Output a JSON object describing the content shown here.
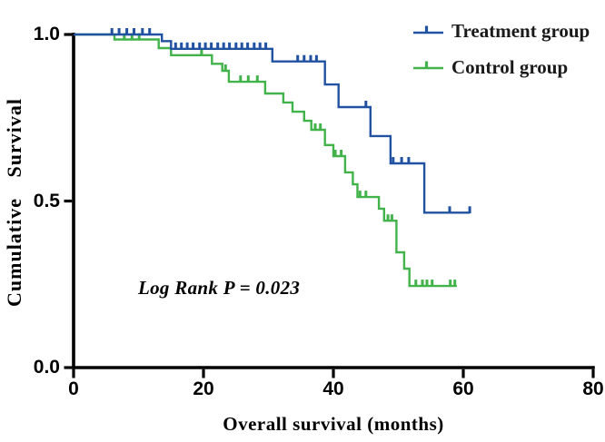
{
  "chart_data": {
    "type": "line",
    "variant": "kaplan_meier_step_curve",
    "title": "",
    "xlabel": "Overall survival (months)",
    "ylabel": "Cumulative Survival",
    "annotation": "Log Rank P = 0.023",
    "log_rank_p": 0.023,
    "xlim": [
      0,
      80
    ],
    "ylim": [
      0.0,
      1.0
    ],
    "x_ticks": [
      0,
      20,
      40,
      60,
      80
    ],
    "x_tick_labels": [
      "0",
      "20",
      "40",
      "60",
      "80"
    ],
    "y_ticks": [
      0.0,
      0.5,
      1.0
    ],
    "y_tick_labels": [
      "0.0",
      "0.5",
      "1.0"
    ],
    "grid": false,
    "legend_position": "top-right",
    "axis_color": "#000000",
    "background_color": "#ffffff",
    "series": [
      {
        "name": "Control group",
        "color": "#42B24A",
        "end_time": 59.0,
        "steps": [
          [
            0,
            1.0
          ],
          [
            6.3,
            0.985
          ],
          [
            13.1,
            0.959
          ],
          [
            15.0,
            0.938
          ],
          [
            21.3,
            0.912
          ],
          [
            22.9,
            0.891
          ],
          [
            23.9,
            0.858
          ],
          [
            29.5,
            0.823
          ],
          [
            32.3,
            0.796
          ],
          [
            33.7,
            0.768
          ],
          [
            35.5,
            0.741
          ],
          [
            36.6,
            0.714
          ],
          [
            38.7,
            0.668
          ],
          [
            40.0,
            0.635
          ],
          [
            41.8,
            0.586
          ],
          [
            43.0,
            0.55
          ],
          [
            43.7,
            0.512
          ],
          [
            47.0,
            0.477
          ],
          [
            47.8,
            0.441
          ],
          [
            49.7,
            0.346
          ],
          [
            50.9,
            0.297
          ],
          [
            51.7,
            0.245
          ]
        ],
        "censor_marks": [
          [
            7.8,
            0.985
          ],
          [
            9.0,
            0.985
          ],
          [
            10.1,
            0.985
          ],
          [
            19.7,
            0.938
          ],
          [
            23.4,
            0.891
          ],
          [
            25.7,
            0.858
          ],
          [
            26.9,
            0.858
          ],
          [
            28.3,
            0.858
          ],
          [
            37.2,
            0.714
          ],
          [
            38.0,
            0.714
          ],
          [
            40.3,
            0.635
          ],
          [
            41.2,
            0.635
          ],
          [
            44.1,
            0.512
          ],
          [
            45.0,
            0.512
          ],
          [
            48.4,
            0.441
          ],
          [
            49.0,
            0.441
          ],
          [
            52.7,
            0.245
          ],
          [
            53.7,
            0.245
          ],
          [
            54.4,
            0.245
          ],
          [
            55.2,
            0.245
          ],
          [
            58.0,
            0.245
          ],
          [
            58.7,
            0.245
          ]
        ]
      },
      {
        "name": "Treatment group",
        "color": "#2151A1",
        "end_time": 61.0,
        "steps": [
          [
            0,
            1.0
          ],
          [
            13.6,
            0.98
          ],
          [
            15.0,
            0.957
          ],
          [
            30.6,
            0.919
          ],
          [
            38.7,
            0.85
          ],
          [
            40.8,
            0.782
          ],
          [
            45.7,
            0.695
          ],
          [
            48.8,
            0.613
          ],
          [
            54.0,
            0.465
          ]
        ],
        "censor_marks": [
          [
            5.9,
            1.0
          ],
          [
            7.0,
            1.0
          ],
          [
            8.2,
            1.0
          ],
          [
            9.3,
            1.0
          ],
          [
            10.6,
            1.0
          ],
          [
            11.7,
            1.0
          ],
          [
            15.7,
            0.957
          ],
          [
            16.6,
            0.957
          ],
          [
            17.5,
            0.957
          ],
          [
            18.4,
            0.957
          ],
          [
            19.4,
            0.957
          ],
          [
            20.3,
            0.957
          ],
          [
            21.2,
            0.957
          ],
          [
            22.2,
            0.957
          ],
          [
            23.1,
            0.957
          ],
          [
            24.0,
            0.957
          ],
          [
            25.0,
            0.957
          ],
          [
            25.9,
            0.957
          ],
          [
            26.8,
            0.957
          ],
          [
            27.8,
            0.957
          ],
          [
            28.7,
            0.957
          ],
          [
            29.6,
            0.957
          ],
          [
            34.5,
            0.919
          ],
          [
            35.5,
            0.919
          ],
          [
            36.5,
            0.919
          ],
          [
            37.4,
            0.919
          ],
          [
            45.0,
            0.782
          ],
          [
            49.2,
            0.613
          ],
          [
            50.5,
            0.613
          ],
          [
            51.6,
            0.613
          ],
          [
            57.9,
            0.465
          ],
          [
            61.0,
            0.465
          ]
        ]
      }
    ]
  }
}
